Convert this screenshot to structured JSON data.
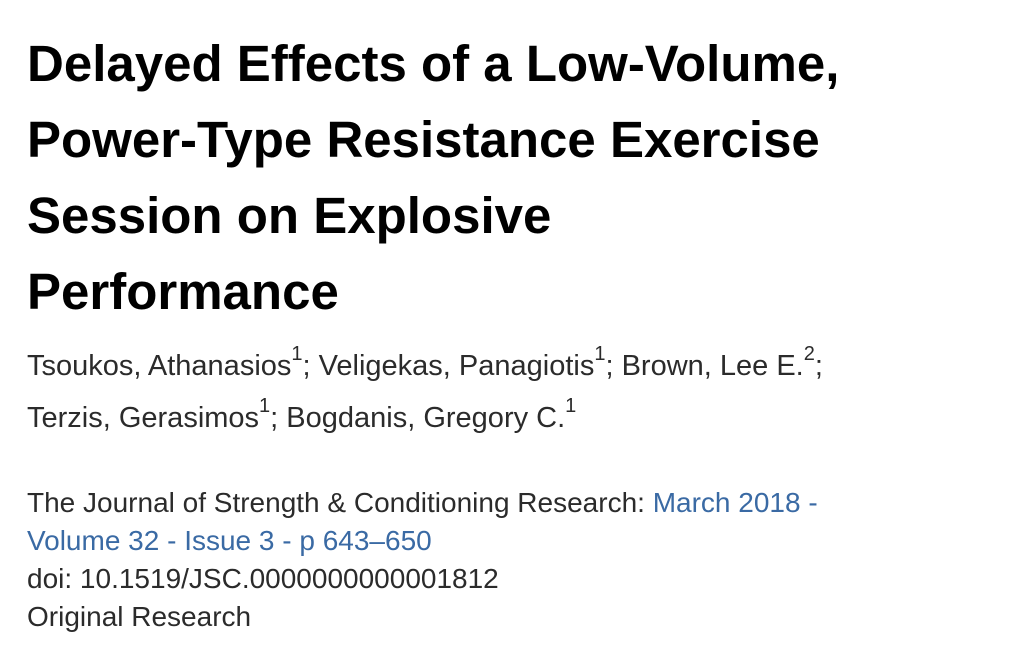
{
  "article": {
    "title": "Delayed Effects of a Low-Volume,\nPower-Type Resistance Exercise\nSession on Explosive\nPerformance",
    "authors": [
      {
        "name": "Tsoukos, Athanasios",
        "aff": "1",
        "sep": "; "
      },
      {
        "name": "Veligekas, Panagiotis",
        "aff": "1",
        "sep": "; "
      },
      {
        "name": "Brown, Lee E.",
        "aff": "2",
        "sep": ";"
      },
      {
        "name": "Terzis, Gerasimos",
        "aff": "1",
        "sep": "; "
      },
      {
        "name": "Bogdanis, Gregory C.",
        "aff": "1",
        "sep": ""
      }
    ],
    "journal": "The Journal of Strength & Conditioning Research: ",
    "issue_link_part1": "March 2018 -",
    "issue_link_part2": "Volume 32 - Issue 3 - p 643–650",
    "doi": "doi: 10.1519/JSC.0000000000001812",
    "article_type": "Original Research"
  },
  "colors": {
    "link": "#3a6aa4",
    "title": "#000000",
    "body_text": "#2b2b2b"
  }
}
